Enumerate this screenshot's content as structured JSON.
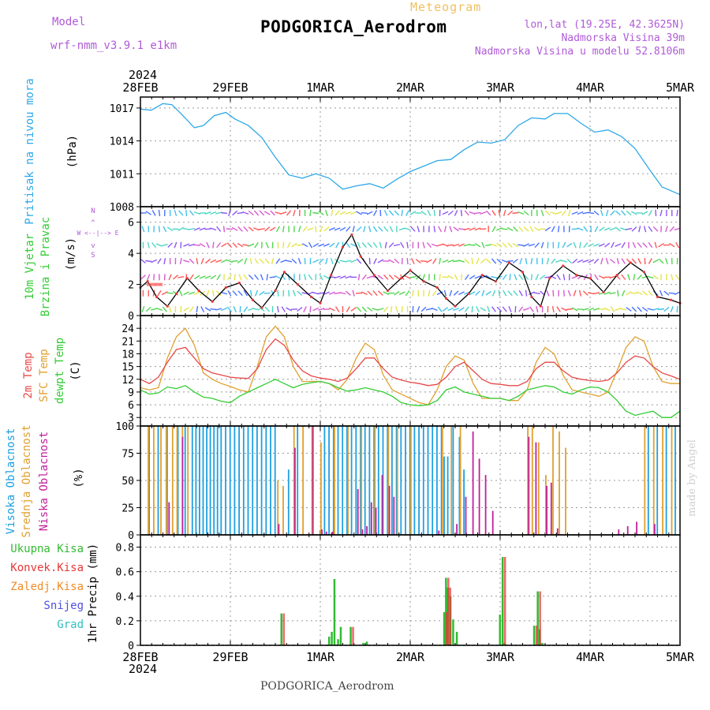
{
  "header": {
    "model_label": "Model",
    "model_name": "wrf-nmm_v3.9.1  e1km",
    "product": "Meteogram",
    "station": "PODGORICA_Aerodrom",
    "lonlat": "lon,lat (19.25E, 42.3625N)",
    "elevation": "Nadmorska Visina 39m",
    "model_elevation": "Nadmorska Visina u modelu 52.8106m"
  },
  "footer": {
    "station": "PODGORICA_Aerodrom",
    "credit": "made by Angel"
  },
  "colors": {
    "pressure": "#2ea8e8",
    "temp2m": "#e84848",
    "sfc_temp": "#e0a030",
    "dewpt": "#33cc33",
    "high_cloud": "#1ea0e0",
    "mid_cloud": "#e0a030",
    "low_cloud": "#c0209c",
    "total_precip": "#33bb33",
    "conv_precip": "#e83838",
    "frozen_precip": "#f08c28",
    "snow": "#5050e0",
    "graupel": "#30c0c0",
    "model_label": "#b05ad8",
    "product_label": "#f0c060",
    "wind_label": "#33cc33",
    "compass": "#b05ad8"
  },
  "chart_data": [
    {
      "type": "line",
      "panel": "pressure",
      "ylabel": "Pritisak na nivou mora",
      "unit": "(hPa)",
      "x_ticks": [
        "28FEB",
        "29FEB",
        "1MAR",
        "2MAR",
        "3MAR",
        "4MAR",
        "5MAR"
      ],
      "year": "2024",
      "x_range_days": [
        0,
        6
      ],
      "ylim": [
        1008,
        1018
      ],
      "yticks": [
        1008,
        1011,
        1014,
        1017
      ],
      "grid": true,
      "series": [
        {
          "x": [
            0,
            0.12,
            0.25,
            0.35,
            0.45,
            0.6,
            0.7,
            0.82,
            0.95,
            1.05,
            1.2,
            1.35,
            1.5,
            1.65,
            1.8,
            1.95,
            2.1,
            2.25,
            2.4,
            2.55,
            2.7,
            2.85,
            3.0,
            3.15,
            3.3,
            3.45,
            3.6,
            3.75,
            3.9,
            4.05,
            4.2,
            4.35,
            4.5,
            4.6,
            4.75,
            4.9,
            5.05,
            5.2,
            5.35,
            5.5,
            5.65,
            5.8,
            6.0
          ],
          "y": [
            1016.9,
            1016.8,
            1017.4,
            1017.3,
            1016.5,
            1015.2,
            1015.4,
            1016.3,
            1016.6,
            1016.0,
            1015.4,
            1014.3,
            1012.5,
            1010.9,
            1010.6,
            1011.0,
            1010.6,
            1009.6,
            1009.9,
            1010.1,
            1009.7,
            1010.5,
            1011.2,
            1011.7,
            1012.2,
            1012.3,
            1013.2,
            1013.9,
            1013.8,
            1014.1,
            1015.4,
            1016.1,
            1016.0,
            1016.5,
            1016.5,
            1015.6,
            1014.8,
            1015.0,
            1014.4,
            1013.3,
            1011.5,
            1009.8,
            1009.1
          ]
        }
      ]
    },
    {
      "type": "line",
      "panel": "wind",
      "ylabel": "10m Vjetar Brzina i Pravac",
      "unit": "(m/s)",
      "compass": "N\n^\n|\nW <--|--> E\n|\nv\nS",
      "ylim": [
        0,
        7
      ],
      "yticks": [
        0,
        2,
        4,
        6
      ],
      "grid": true,
      "series": [
        {
          "name": "speed",
          "x": [
            0,
            0.08,
            0.18,
            0.3,
            0.4,
            0.52,
            0.65,
            0.8,
            0.95,
            1.1,
            1.25,
            1.35,
            1.5,
            1.6,
            1.75,
            1.9,
            2.0,
            2.12,
            2.25,
            2.35,
            2.45,
            2.6,
            2.75,
            2.9,
            3.0,
            3.15,
            3.3,
            3.4,
            3.5,
            3.65,
            3.8,
            3.95,
            4.1,
            4.25,
            4.35,
            4.45,
            4.55,
            4.7,
            4.85,
            5.0,
            5.15,
            5.3,
            5.45,
            5.6,
            5.75,
            5.9,
            6.0
          ],
          "y": [
            1.8,
            2.2,
            1.2,
            0.6,
            1.4,
            2.4,
            1.6,
            0.9,
            1.8,
            2.1,
            1.0,
            0.5,
            1.6,
            2.8,
            2.0,
            1.2,
            0.8,
            2.6,
            4.4,
            5.2,
            3.8,
            2.6,
            1.6,
            2.4,
            2.9,
            2.2,
            1.8,
            1.1,
            0.6,
            1.4,
            2.6,
            2.2,
            3.4,
            2.8,
            1.2,
            0.6,
            2.4,
            3.2,
            2.6,
            2.4,
            1.5,
            2.6,
            3.4,
            2.8,
            1.2,
            1.0,
            0.8
          ]
        }
      ]
    },
    {
      "type": "line",
      "panel": "temperature",
      "ylabel": "2m Temp, SFC Temp, dewpt Temp",
      "unit": "(C)",
      "ylim": [
        1,
        27
      ],
      "yticks": [
        3,
        6,
        9,
        12,
        15,
        18,
        21,
        24
      ],
      "grid": true,
      "series": [
        {
          "name": "2m Temp",
          "x": [
            0,
            0.1,
            0.2,
            0.3,
            0.4,
            0.5,
            0.6,
            0.7,
            0.8,
            0.9,
            1.0,
            1.1,
            1.2,
            1.3,
            1.4,
            1.5,
            1.6,
            1.7,
            1.8,
            1.9,
            2.0,
            2.1,
            2.2,
            2.3,
            2.4,
            2.5,
            2.6,
            2.7,
            2.8,
            2.9,
            3.0,
            3.1,
            3.2,
            3.3,
            3.4,
            3.5,
            3.6,
            3.7,
            3.8,
            3.9,
            4.0,
            4.1,
            4.2,
            4.3,
            4.4,
            4.5,
            4.6,
            4.7,
            4.8,
            4.9,
            5.0,
            5.1,
            5.2,
            5.3,
            5.4,
            5.5,
            5.6,
            5.7,
            5.8,
            5.9,
            6.0
          ],
          "y": [
            12,
            11,
            12.5,
            16,
            19,
            19.5,
            17,
            14.5,
            13.5,
            13,
            12.5,
            12.3,
            12.2,
            14.5,
            19,
            21.5,
            20,
            16.5,
            14,
            12.8,
            12.3,
            12,
            11.5,
            12.3,
            14.5,
            17,
            17,
            14.5,
            12.5,
            11.8,
            11.3,
            11,
            10.5,
            10.8,
            12.5,
            15,
            16,
            14,
            12,
            11,
            10.8,
            10.5,
            10.5,
            11.5,
            14.5,
            16,
            16,
            14,
            12.5,
            12,
            11.7,
            11.5,
            11.8,
            13.5,
            16,
            17.5,
            17,
            15,
            13.5,
            12.8,
            12
          ]
        },
        {
          "name": "SFC Temp",
          "x": [
            0,
            0.1,
            0.2,
            0.3,
            0.4,
            0.5,
            0.6,
            0.7,
            0.8,
            0.9,
            1.0,
            1.1,
            1.2,
            1.3,
            1.4,
            1.5,
            1.6,
            1.7,
            1.8,
            1.9,
            2.0,
            2.1,
            2.2,
            2.3,
            2.4,
            2.5,
            2.6,
            2.7,
            2.8,
            2.9,
            3.0,
            3.1,
            3.2,
            3.3,
            3.4,
            3.5,
            3.6,
            3.7,
            3.8,
            3.9,
            4.0,
            4.1,
            4.2,
            4.3,
            4.4,
            4.5,
            4.6,
            4.7,
            4.8,
            4.9,
            5.0,
            5.1,
            5.2,
            5.3,
            5.4,
            5.5,
            5.6,
            5.7,
            5.8,
            5.9,
            6.0
          ],
          "y": [
            10,
            9.5,
            10,
            17,
            22,
            24,
            20,
            13.5,
            12,
            11,
            10.3,
            9.5,
            9,
            15,
            22,
            24.5,
            22,
            15,
            11.5,
            11.5,
            11.5,
            11,
            9.5,
            12,
            17,
            20.5,
            19,
            13,
            9.5,
            8.5,
            7.5,
            6.5,
            6,
            9.5,
            15,
            17.5,
            16.5,
            11,
            7.5,
            7.5,
            7.5,
            7,
            7,
            9.5,
            16,
            19.5,
            18,
            13,
            9.5,
            9,
            8.5,
            8,
            9,
            14,
            19.5,
            22,
            21,
            15,
            11.5,
            11,
            11
          ]
        },
        {
          "name": "dewpt Temp",
          "x": [
            0,
            0.1,
            0.2,
            0.3,
            0.4,
            0.5,
            0.6,
            0.7,
            0.8,
            0.9,
            1.0,
            1.1,
            1.2,
            1.3,
            1.4,
            1.5,
            1.6,
            1.7,
            1.8,
            1.9,
            2.0,
            2.1,
            2.2,
            2.3,
            2.4,
            2.5,
            2.6,
            2.7,
            2.8,
            2.9,
            3.0,
            3.1,
            3.2,
            3.3,
            3.4,
            3.5,
            3.6,
            3.7,
            3.8,
            3.9,
            4.0,
            4.1,
            4.2,
            4.3,
            4.4,
            4.5,
            4.6,
            4.7,
            4.8,
            4.9,
            5.0,
            5.1,
            5.2,
            5.3,
            5.4,
            5.5,
            5.6,
            5.7,
            5.8,
            5.9,
            6.0
          ],
          "y": [
            9.5,
            8.5,
            8.8,
            10.2,
            9.8,
            10.5,
            9,
            7.8,
            7.5,
            6.8,
            6.5,
            8,
            9,
            10,
            11,
            12,
            11,
            10,
            10.8,
            11.2,
            11.5,
            11,
            10,
            9.2,
            9.5,
            10,
            9.5,
            9,
            8,
            6.5,
            6,
            5.8,
            6,
            7,
            9.5,
            10.2,
            9,
            8.5,
            8,
            7.5,
            7.5,
            7,
            8,
            9.5,
            10,
            10.5,
            10.2,
            9,
            8.5,
            9.5,
            10.2,
            10,
            9,
            7,
            4.5,
            3.5,
            4,
            4.5,
            3,
            3,
            4.5
          ]
        }
      ]
    },
    {
      "type": "bar",
      "panel": "cloud",
      "ylabel": "Visoka Oblacnost, Srednja Oblacnost, Niska Oblacnost",
      "unit": "(%)",
      "ylim": [
        0,
        100
      ],
      "yticks": [
        0,
        25,
        50,
        75,
        100
      ],
      "grid": true,
      "series": [
        {
          "name": "Visoka Oblacnost",
          "x": [
            0.1,
            0.2,
            0.3,
            0.42,
            0.5,
            0.58,
            0.62,
            0.66,
            0.7,
            0.74,
            0.78,
            0.82,
            0.86,
            0.9,
            0.95,
            1.0,
            1.05,
            1.1,
            1.15,
            1.2,
            1.25,
            1.3,
            1.35,
            1.4,
            1.45,
            1.5,
            1.65,
            1.75,
            2.05,
            2.1,
            2.15,
            2.2,
            2.25,
            2.3,
            2.35,
            2.4,
            2.45,
            2.5,
            2.55,
            2.6,
            2.65,
            2.7,
            2.75,
            2.8,
            2.85,
            2.9,
            2.95,
            3.0,
            3.05,
            3.1,
            3.15,
            3.2,
            3.25,
            3.3,
            3.35,
            3.38,
            3.42,
            3.48,
            3.55,
            3.6,
            5.65,
            5.75,
            5.85,
            5.95
          ],
          "y": [
            100,
            100,
            100,
            100,
            100,
            100,
            100,
            100,
            100,
            100,
            100,
            100,
            100,
            100,
            100,
            100,
            100,
            100,
            100,
            100,
            100,
            100,
            100,
            100,
            100,
            100,
            60,
            100,
            100,
            100,
            100,
            100,
            100,
            100,
            100,
            100,
            100,
            100,
            100,
            100,
            100,
            100,
            100,
            100,
            100,
            100,
            100,
            100,
            100,
            100,
            100,
            100,
            100,
            100,
            100,
            72,
            72,
            100,
            90,
            60,
            100,
            100,
            100,
            100
          ]
        },
        {
          "name": "Srednja Oblacnost",
          "x": [
            0.08,
            0.14,
            0.22,
            0.28,
            0.35,
            0.4,
            0.46,
            0.52,
            1.52,
            1.58,
            1.7,
            1.8,
            1.9,
            2.0,
            2.15,
            2.3,
            2.45,
            2.6,
            2.75,
            2.85,
            3.0,
            3.35,
            3.45,
            3.55,
            4.3,
            4.35,
            4.42,
            4.5,
            4.58,
            4.65,
            4.72,
            5.6,
            5.7,
            5.8,
            5.9
          ],
          "y": [
            100,
            100,
            100,
            100,
            100,
            100,
            100,
            100,
            50,
            45,
            100,
            100,
            100,
            85,
            100,
            100,
            100,
            100,
            100,
            100,
            100,
            100,
            100,
            100,
            100,
            100,
            85,
            55,
            100,
            95,
            80,
            100,
            100,
            100,
            100
          ]
        },
        {
          "name": "Niska Oblacnost",
          "x": [
            0.3,
            0.45,
            1.52,
            1.7,
            1.9,
            2.0,
            2.05,
            2.12,
            2.4,
            2.45,
            2.5,
            2.55,
            2.6,
            2.67,
            2.75,
            2.8,
            3.3,
            3.5,
            3.6,
            3.68,
            3.75,
            3.82,
            3.9,
            4.3,
            4.38,
            4.5,
            4.55,
            4.62,
            5.3,
            5.4,
            5.5,
            5.7
          ],
          "y": [
            30,
            90,
            10,
            80,
            100,
            5,
            3,
            3,
            42,
            5,
            8,
            30,
            25,
            55,
            45,
            35,
            4,
            10,
            35,
            95,
            70,
            55,
            22,
            90,
            85,
            45,
            48,
            6,
            5,
            8,
            12,
            10
          ]
        }
      ]
    },
    {
      "type": "bar",
      "panel": "precip",
      "ylabel": "1hr Precip (mm)",
      "legend": [
        "Ukupna Kisa",
        "Konvek.Kisa",
        "Zaledj.Kisa",
        "Snijeg",
        "Grad"
      ],
      "ylim": [
        0,
        0.9
      ],
      "yticks": [
        0,
        0.2,
        0.4,
        0.6,
        0.8
      ],
      "grid": true,
      "x_ticks_bottom": [
        "28FEB",
        "29FEB",
        "1MAR",
        "2MAR",
        "3MAR",
        "4MAR",
        "5MAR"
      ],
      "year_bottom": "2024",
      "series": [
        {
          "name": "Ukupna Kisa",
          "x": [
            1.57,
            2.1,
            2.13,
            2.16,
            2.2,
            2.23,
            2.34,
            2.48,
            2.52,
            3.38,
            3.4,
            3.42,
            3.45,
            3.48,
            3.52,
            4.0,
            4.03,
            4.05,
            4.38,
            4.42,
            4.44,
            4.47
          ],
          "y": [
            0.26,
            0.07,
            0.11,
            0.54,
            0.05,
            0.15,
            0.15,
            0.02,
            0.03,
            0.27,
            0.55,
            0.47,
            0.4,
            0.21,
            0.11,
            0.25,
            0.72,
            0.02,
            0.16,
            0.44,
            0.13,
            0.02
          ]
        },
        {
          "name": "Konvek.Kisa",
          "x": [
            1.57,
            2.34,
            3.38,
            3.4,
            3.42,
            4.03,
            4.38,
            4.42
          ],
          "y": [
            0.26,
            0.15,
            0.27,
            0.55,
            0.47,
            0.72,
            0.16,
            0.44
          ]
        }
      ]
    }
  ]
}
